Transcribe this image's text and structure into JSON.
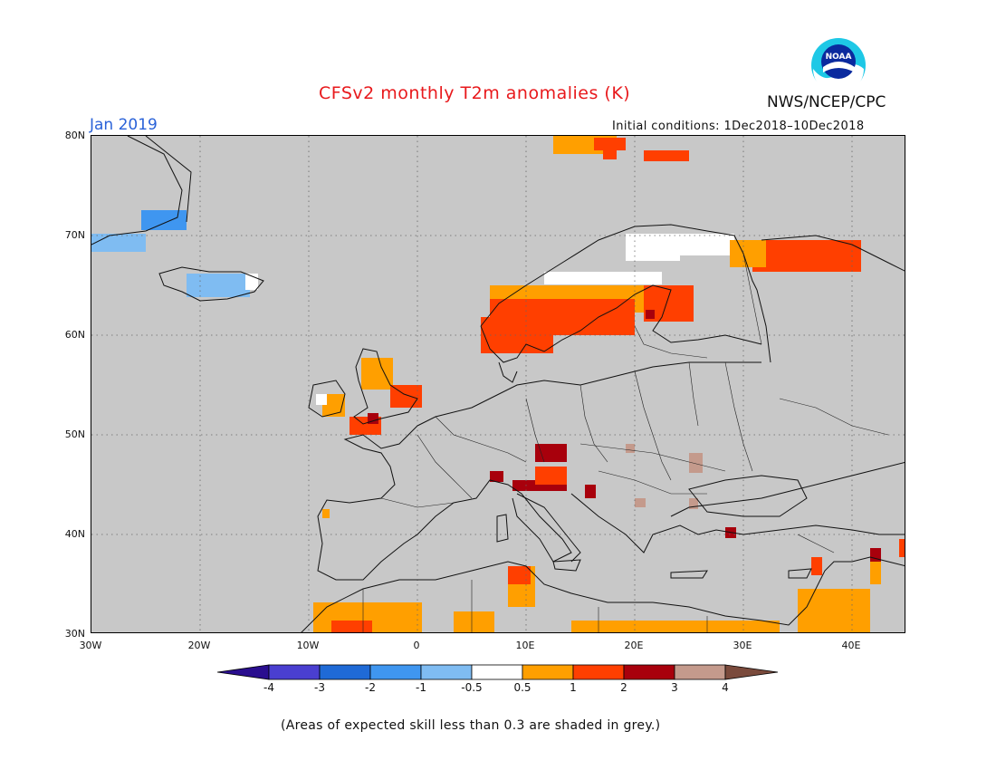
{
  "header": {
    "title": "CFSv2 monthly T2m anomalies (K)",
    "month": "Jan 2019",
    "initial_conditions": "Initial conditions: 1Dec2018–10Dec2018",
    "agency": "NWS/NCEP/CPC",
    "logo_text": "NOAA"
  },
  "map": {
    "lat_labels": [
      "80N",
      "70N",
      "60N",
      "50N",
      "40N",
      "30N"
    ],
    "lon_labels": [
      "30W",
      "20W",
      "10W",
      "0",
      "10E",
      "20E",
      "30E",
      "40E"
    ],
    "extent": {
      "lon": [
        -30,
        45
      ],
      "lat": [
        30,
        80
      ]
    },
    "grid": "dotted",
    "mask_color": "#c8c8c8"
  },
  "colorbar": {
    "labels": [
      "-4",
      "-3",
      "-2",
      "-1",
      "-0.5",
      "0.5",
      "1",
      "2",
      "3",
      "4"
    ],
    "colors": [
      "#2a0e8f",
      "#4a3fd0",
      "#1f6ad6",
      "#3f96f0",
      "#7fbcf2",
      "#ffffff",
      "#ff9f00",
      "#ff3f00",
      "#a8000c",
      "#c49a8c",
      "#7a4a3c"
    ]
  },
  "footnote": "(Areas of expected skill less than 0.3 are shaded in grey.)"
}
